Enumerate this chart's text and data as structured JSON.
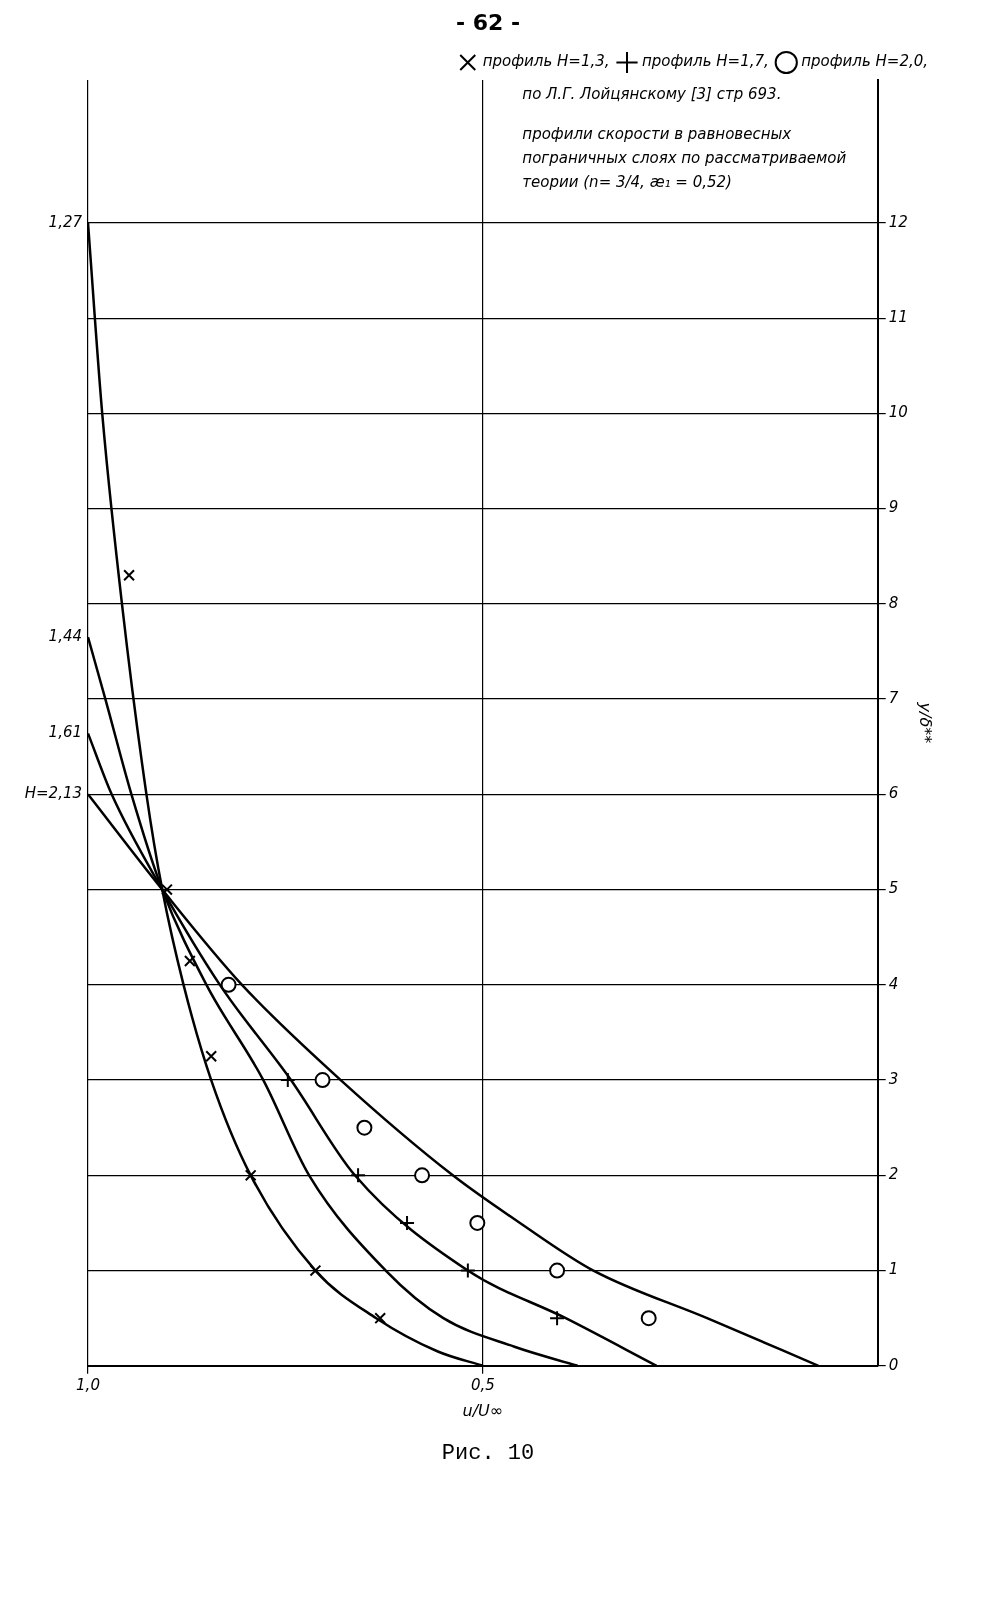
{
  "chart_data": {
    "type": "line",
    "title": "Рис. 10",
    "xlabel": "u/U∞",
    "ylabel": "y/δ**",
    "xlim": [
      1.0,
      0
    ],
    "xticks": [
      {
        "value": 1,
        "label": "1,0"
      },
      {
        "value": 0.5,
        "label": "0,5"
      }
    ],
    "ylim": [
      0,
      13.5
    ],
    "yticks": [
      0,
      1,
      2,
      3,
      4,
      5,
      6,
      7,
      8,
      9,
      10,
      11,
      12
    ],
    "grid": true,
    "legend": "top right",
    "annotations": [
      "- 62 -",
      "по Л.Г. Лойцянскому [3] стр 693.",
      "профили скорости в равновесных пограничных слоях по рассматриваемой теории (n= 3/4, æ₁ = 0,52)"
    ],
    "series": [
      {
        "name": "1,27",
        "color": "#000000",
        "marker": "none",
        "x": [
          0.5,
          0.557,
          0.635,
          0.712,
          0.794,
          0.844,
          0.879,
          0.906,
          0.926,
          0.957,
          0.982,
          1.0
        ],
        "values": [
          0,
          0.15,
          0.5,
          1,
          2,
          3,
          4,
          5,
          6,
          8,
          10,
          12
        ]
      },
      {
        "name": "1,44",
        "color": "#000000",
        "marker": "none",
        "x": [
          0.38,
          0.46,
          0.55,
          0.623,
          0.72,
          0.778,
          0.85,
          0.906,
          0.945,
          0.978,
          1.0
        ],
        "values": [
          0,
          0.2,
          0.5,
          1,
          2,
          3,
          4,
          5,
          6,
          7,
          7.65
        ]
      },
      {
        "name": "1,61",
        "color": "#000000",
        "marker": "none",
        "x": [
          0.28,
          0.395,
          0.519,
          0.662,
          0.743,
          0.833,
          0.906,
          0.97,
          1.0
        ],
        "values": [
          0,
          0.5,
          1,
          2,
          3,
          4,
          5,
          6,
          6.64
        ]
      },
      {
        "name": "H=2,13",
        "color": "#000000",
        "marker": "none",
        "x": [
          0.075,
          0.216,
          0.36,
          0.453,
          0.538,
          0.68,
          0.805,
          0.906,
          1.0
        ],
        "values": [
          0,
          0.5,
          1,
          1.5,
          2,
          3,
          4,
          5,
          6
        ]
      },
      {
        "name": "профиль H=1,3,",
        "type": "scatter",
        "color": "#000000",
        "marker": "x",
        "x": [
          0.63,
          0.712,
          0.794,
          0.844,
          0.871,
          0.9,
          0.948
        ],
        "values": [
          0.5,
          1,
          2,
          3.25,
          4.25,
          5,
          8.3
        ]
      },
      {
        "name": "профиль H=1,7,",
        "type": "scatter",
        "color": "#000000",
        "marker": "cross",
        "x": [
          0.406,
          0.519,
          0.596,
          0.658,
          0.747
        ],
        "values": [
          0.5,
          1,
          1.5,
          2,
          3
        ]
      },
      {
        "name": "профиль H=2,0,",
        "type": "scatter",
        "color": "#000000",
        "marker": "circle",
        "x": [
          0.29,
          0.406,
          0.507,
          0.577,
          0.65,
          0.703,
          0.822
        ],
        "values": [
          0.5,
          1,
          1.5,
          2,
          2.5,
          3,
          4
        ]
      }
    ]
  }
}
